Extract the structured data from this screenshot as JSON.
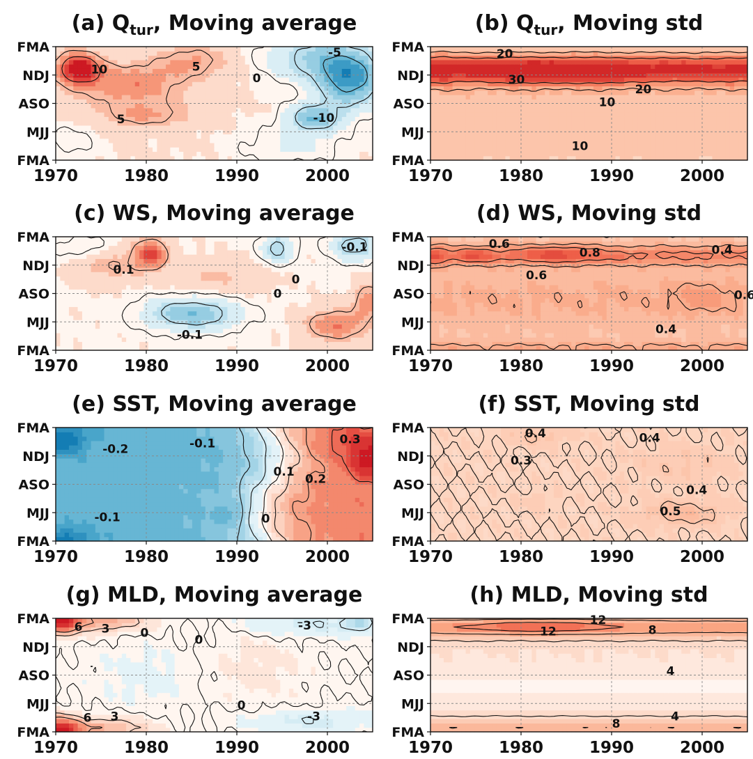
{
  "chart_data": [
    {
      "type": "heatmap",
      "panel": "a",
      "title": "(a) Q",
      "title_sub": "tur",
      "title_rest": ", Moving average",
      "xlim": [
        1970,
        2005
      ],
      "xticks": [
        1970,
        1980,
        1990,
        2000
      ],
      "yticks": [
        "FMA",
        "NDJ",
        "ASO",
        "MJJ",
        "FMA"
      ],
      "diverging": true,
      "vmax": 15,
      "contour_labels": [
        {
          "text": "10",
          "x": 1974.8,
          "y": 3.2
        },
        {
          "text": "5",
          "x": 1985.5,
          "y": 3.3
        },
        {
          "text": "0",
          "x": 1992.2,
          "y": 2.9
        },
        {
          "text": "-5",
          "x": 2000.8,
          "y": 3.8
        },
        {
          "text": "5",
          "x": 1977.2,
          "y": 1.45
        },
        {
          "text": "-10",
          "x": 1999.6,
          "y": 1.5
        }
      ],
      "anomalies": [
        {
          "x": 1972.5,
          "y": 3.25,
          "v": 15,
          "sx": 2.3,
          "sy": 0.5
        },
        {
          "x": 1978,
          "y": 2.7,
          "v": 7,
          "sx": 6,
          "sy": 0.7
        },
        {
          "x": 1985,
          "y": 3.5,
          "v": 5,
          "sx": 4,
          "sy": 0.55
        },
        {
          "x": 1980,
          "y": 1.6,
          "v": 5,
          "sx": 5,
          "sy": 0.45
        },
        {
          "x": 2002.5,
          "y": 2.9,
          "v": -14,
          "sx": 3.5,
          "sy": 1.0
        },
        {
          "x": 1998.5,
          "y": 1.5,
          "v": -10,
          "sx": 3,
          "sy": 0.5
        },
        {
          "x": 1998,
          "y": 3.6,
          "v": -7,
          "sx": 5,
          "sy": 0.8
        },
        {
          "x": 1971.5,
          "y": 0.7,
          "v": -2.5,
          "sx": 3,
          "sy": 0.6
        },
        {
          "x": 1996,
          "y": 0.5,
          "v": -3,
          "sx": 6,
          "sy": 0.7
        }
      ],
      "base": 1.5,
      "levels": [
        -10,
        -5,
        0,
        5,
        10
      ]
    },
    {
      "type": "heatmap",
      "panel": "b",
      "title": "(b) Q",
      "title_sub": "tur",
      "title_rest": ", Moving std",
      "xlim": [
        1970,
        2005
      ],
      "xticks": [
        1970,
        1980,
        1990,
        2000
      ],
      "yticks": [
        "FMA",
        "NDJ",
        "ASO",
        "MJJ",
        "FMA"
      ],
      "diverging": false,
      "vmax": 45,
      "contour_labels": [
        {
          "text": "20",
          "x": 1978.2,
          "y": 3.75
        },
        {
          "text": "30",
          "x": 1979.5,
          "y": 2.85
        },
        {
          "text": "20",
          "x": 1993.5,
          "y": 2.5
        },
        {
          "text": "10",
          "x": 1989.5,
          "y": 2.05
        },
        {
          "text": "10",
          "x": 1986.5,
          "y": 0.5
        }
      ],
      "bands": [
        {
          "y": 3.2,
          "v": 24,
          "sy": 0.45
        },
        {
          "y": 3.2,
          "v": 14,
          "sy": 0.9
        },
        {
          "y": 1.0,
          "v": 10,
          "sy": 1.6
        }
      ],
      "anomalies": [
        {
          "x": 1983,
          "y": 3.15,
          "v": 12,
          "sx": 7,
          "sy": 0.35
        },
        {
          "x": 1990,
          "y": 3.1,
          "v": 8,
          "sx": 2,
          "sy": 0.3
        },
        {
          "x": 1971,
          "y": 3.2,
          "v": 8,
          "sx": 1.5,
          "sy": 0.4
        }
      ],
      "base": 6,
      "levels": [
        10,
        20,
        30
      ]
    },
    {
      "type": "heatmap",
      "panel": "c",
      "title": "(c) WS, Moving average",
      "xlim": [
        1970,
        2005
      ],
      "xticks": [
        1970,
        1980,
        1990,
        2000
      ],
      "yticks": [
        "FMA",
        "NDJ",
        "ASO",
        "MJJ",
        "FMA"
      ],
      "diverging": true,
      "vmax": 0.3,
      "contour_labels": [
        {
          "text": "0.1",
          "x": 1977.5,
          "y": 2.85
        },
        {
          "text": "0",
          "x": 1994.5,
          "y": 2.0
        },
        {
          "text": "0",
          "x": 1996.5,
          "y": 2.5
        },
        {
          "text": "-0.1",
          "x": 2003,
          "y": 3.65
        },
        {
          "text": "-0.1",
          "x": 1984.8,
          "y": 0.55
        }
      ],
      "anomalies": [
        {
          "x": 1980.5,
          "y": 3.4,
          "v": 0.22,
          "sx": 1.8,
          "sy": 0.5
        },
        {
          "x": 1976,
          "y": 3.0,
          "v": 0.08,
          "sx": 4,
          "sy": 0.6
        },
        {
          "x": 2001,
          "y": 0.9,
          "v": 0.16,
          "sx": 3.5,
          "sy": 0.55
        },
        {
          "x": 2004.5,
          "y": 1.8,
          "v": 0.14,
          "sx": 1.5,
          "sy": 0.6
        },
        {
          "x": 1985,
          "y": 1.3,
          "v": -0.2,
          "sx": 5,
          "sy": 0.55
        },
        {
          "x": 1994.5,
          "y": 3.6,
          "v": -0.15,
          "sx": 1.7,
          "sy": 0.5
        },
        {
          "x": 2003,
          "y": 3.7,
          "v": -0.16,
          "sx": 2.5,
          "sy": 0.5
        },
        {
          "x": 1973,
          "y": 3.6,
          "v": -0.06,
          "sx": 3,
          "sy": 0.4
        },
        {
          "x": 1988,
          "y": 2.6,
          "v": 0.06,
          "sx": 5,
          "sy": 0.6
        }
      ],
      "base": 0.02,
      "levels": [
        -0.1,
        0,
        0.1
      ]
    },
    {
      "type": "heatmap",
      "panel": "d",
      "title": "(d) WS, Moving std",
      "xlim": [
        1970,
        2005
      ],
      "xticks": [
        1970,
        1980,
        1990,
        2000
      ],
      "yticks": [
        "FMA",
        "NDJ",
        "ASO",
        "MJJ",
        "FMA"
      ],
      "diverging": false,
      "vmax": 1.3,
      "contour_labels": [
        {
          "text": "0.6",
          "x": 1977.6,
          "y": 3.75
        },
        {
          "text": "0.8",
          "x": 1987.6,
          "y": 3.45
        },
        {
          "text": "0.4",
          "x": 2002.2,
          "y": 3.55
        },
        {
          "text": "0.6",
          "x": 1981.7,
          "y": 2.65
        },
        {
          "text": "0.6",
          "x": 2005,
          "y": 1.95
        },
        {
          "text": "0.4",
          "x": 1996,
          "y": 0.75
        }
      ],
      "bands": [
        {
          "y": 3.35,
          "v": 0.4,
          "sy": 0.35
        },
        {
          "y": 1.8,
          "v": 0.15,
          "sy": 1.0
        },
        {
          "y": 0.05,
          "v": 0.22,
          "sy": 0.25
        }
      ],
      "anomalies": [
        {
          "x": 1984,
          "y": 3.4,
          "v": 0.35,
          "sx": 4,
          "sy": 0.25
        },
        {
          "x": 1975,
          "y": 3.35,
          "v": 0.3,
          "sx": 2,
          "sy": 0.2
        },
        {
          "x": 1970.5,
          "y": 3.3,
          "v": 0.35,
          "sx": 1,
          "sy": 0.3
        },
        {
          "x": 2000,
          "y": 1.9,
          "v": 0.15,
          "sx": 3,
          "sy": 0.5
        }
      ],
      "base": 0.42,
      "levels": [
        0.4,
        0.6,
        0.8
      ]
    },
    {
      "type": "heatmap",
      "panel": "e",
      "title": "(e) SST, Moving average",
      "xlim": [
        1970,
        2005
      ],
      "xticks": [
        1970,
        1980,
        1990,
        2000
      ],
      "yticks": [
        "FMA",
        "NDJ",
        "ASO",
        "MJJ",
        "FMA"
      ],
      "diverging": true,
      "vmax": 0.45,
      "contour_labels": [
        {
          "text": "-0.2",
          "x": 1976.6,
          "y": 3.25
        },
        {
          "text": "-0.1",
          "x": 1986.2,
          "y": 3.45
        },
        {
          "text": "0.3",
          "x": 2002.5,
          "y": 3.6
        },
        {
          "text": "0.1",
          "x": 1995.2,
          "y": 2.45
        },
        {
          "text": "0.2",
          "x": 1998.7,
          "y": 2.2
        },
        {
          "text": "-0.1",
          "x": 1975.7,
          "y": 0.85
        },
        {
          "text": "0",
          "x": 1993.2,
          "y": 0.8
        }
      ],
      "field": "sst"
    },
    {
      "type": "heatmap",
      "panel": "f",
      "title": "(f) SST, Moving std",
      "xlim": [
        1970,
        2005
      ],
      "xticks": [
        1970,
        1980,
        1990,
        2000
      ],
      "yticks": [
        "FMA",
        "NDJ",
        "ASO",
        "MJJ",
        "FMA"
      ],
      "diverging": false,
      "vmax": 1.2,
      "contour_labels": [
        {
          "text": "0.4",
          "x": 1981.6,
          "y": 3.8
        },
        {
          "text": "0.4",
          "x": 1994.2,
          "y": 3.65
        },
        {
          "text": "0.3",
          "x": 1980,
          "y": 2.85
        },
        {
          "text": "0.4",
          "x": 1999.4,
          "y": 1.8
        },
        {
          "text": "0.5",
          "x": 1996.5,
          "y": 1.05
        }
      ],
      "anomalies": [
        {
          "x": 1982,
          "y": 3.7,
          "v": 0.1,
          "sx": 4,
          "sy": 0.35
        },
        {
          "x": 1998,
          "y": 2.7,
          "v": 0.08,
          "sx": 6,
          "sy": 0.7
        },
        {
          "x": 1998,
          "y": 1.0,
          "v": 0.16,
          "sx": 5,
          "sy": 0.45
        },
        {
          "x": 1982,
          "y": 1.45,
          "v": 0.07,
          "sx": 2,
          "sy": 0.3
        }
      ],
      "base": 0.3,
      "levels": [
        0.3,
        0.4,
        0.5
      ]
    },
    {
      "type": "heatmap",
      "panel": "g",
      "title": "(g) MLD, Moving average",
      "xlim": [
        1970,
        2005
      ],
      "xticks": [
        1970,
        1980,
        1990,
        2000
      ],
      "yticks": [
        "FMA",
        "NDJ",
        "ASO",
        "MJJ",
        "FMA"
      ],
      "diverging": true,
      "vmax": 15,
      "contour_labels": [
        {
          "text": "6",
          "x": 1972.5,
          "y": 3.7
        },
        {
          "text": "3",
          "x": 1975.5,
          "y": 3.65
        },
        {
          "text": "0",
          "x": 1979.8,
          "y": 3.5
        },
        {
          "text": "0",
          "x": 1985.8,
          "y": 3.25
        },
        {
          "text": "-3",
          "x": 1997.5,
          "y": 3.75
        },
        {
          "text": "0",
          "x": 1990.5,
          "y": 0.95
        },
        {
          "text": "6",
          "x": 1973.5,
          "y": 0.5
        },
        {
          "text": "3",
          "x": 1976.5,
          "y": 0.55
        },
        {
          "text": "-3",
          "x": 1998.5,
          "y": 0.55
        }
      ],
      "anomalies": [
        {
          "x": 1970.5,
          "y": 4.0,
          "v": 14,
          "sx": 2,
          "sy": 0.5
        },
        {
          "x": 1975,
          "y": 3.9,
          "v": 6,
          "sx": 5,
          "sy": 0.35
        },
        {
          "x": 1970.5,
          "y": 0.0,
          "v": 14,
          "sx": 2,
          "sy": 0.5
        },
        {
          "x": 1975,
          "y": 0.15,
          "v": 6,
          "sx": 5,
          "sy": 0.35
        },
        {
          "x": 1998,
          "y": 3.8,
          "v": -3,
          "sx": 7,
          "sy": 0.4
        },
        {
          "x": 2003.5,
          "y": 3.85,
          "v": -5,
          "sx": 1.5,
          "sy": 0.3
        },
        {
          "x": 1998,
          "y": 0.4,
          "v": -3,
          "sx": 7,
          "sy": 0.35
        },
        {
          "x": 1980,
          "y": 2.0,
          "v": -1.2,
          "sx": 6,
          "sy": 1.2
        },
        {
          "x": 1992,
          "y": 2.3,
          "v": 1.2,
          "sx": 6,
          "sy": 1.4
        }
      ],
      "base": 0,
      "levels": [
        -3,
        0,
        3,
        6
      ]
    },
    {
      "type": "heatmap",
      "panel": "h",
      "title": "(h) MLD, Moving std",
      "xlim": [
        1970,
        2005
      ],
      "xticks": [
        1970,
        1980,
        1990,
        2000
      ],
      "yticks": [
        "FMA",
        "NDJ",
        "ASO",
        "MJJ",
        "FMA"
      ],
      "diverging": false,
      "vmax": 20,
      "contour_labels": [
        {
          "text": "12",
          "x": 1988.5,
          "y": 3.95
        },
        {
          "text": "12",
          "x": 1983,
          "y": 3.55
        },
        {
          "text": "8",
          "x": 1994.5,
          "y": 3.6
        },
        {
          "text": "4",
          "x": 1996.5,
          "y": 2.15
        },
        {
          "text": "8",
          "x": 1990.5,
          "y": 0.3
        },
        {
          "text": "4",
          "x": 1997,
          "y": 0.55
        }
      ],
      "field": "mld_std"
    }
  ]
}
